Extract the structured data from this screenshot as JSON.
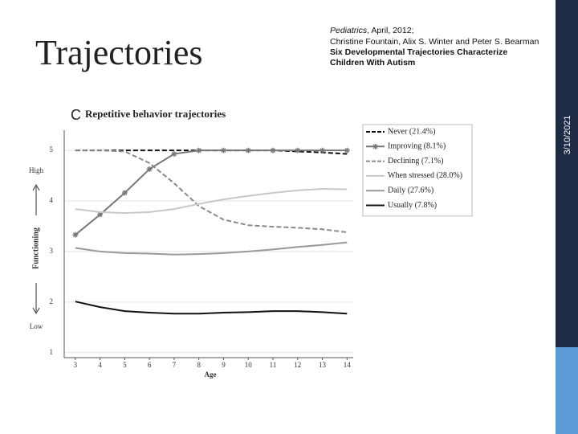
{
  "slide": {
    "title": "Trajectories",
    "date": "3/10/2021",
    "citation": {
      "journal": "Pediatrics",
      "issue": ", April, 2012;",
      "authors": "Christine Fountain, Alix S. Winter and Peter S. Bearman",
      "article_line1": "Six Developmental Trajectories Characterize",
      "article_line2": "Children With Autism"
    }
  },
  "chart_data": {
    "type": "line",
    "panel": "C",
    "title": "Repetitive behavior trajectories",
    "x_label": "Age",
    "y_label": "Functioning",
    "y_high": "High",
    "y_low": "Low",
    "x": [
      3,
      4,
      5,
      6,
      7,
      8,
      9,
      10,
      11,
      12,
      13,
      14
    ],
    "xlim": [
      2.55,
      14.25
    ],
    "xticks": [
      3,
      4,
      5,
      6,
      7,
      8,
      9,
      10,
      11,
      12,
      13,
      14
    ],
    "ylim": [
      0.9,
      5.4
    ],
    "yticks": [
      1,
      2,
      3,
      4,
      5
    ],
    "grid": true,
    "legend": "upper right",
    "series": [
      {
        "name": "Never (21.4%)",
        "color": "#111111",
        "style": "dashed",
        "values": [
          5,
          5,
          5,
          5,
          5,
          5,
          5,
          5,
          5,
          4.98,
          4.96,
          4.93
        ]
      },
      {
        "name": "Improving (8.1%)",
        "color": "#777777",
        "style": "solid",
        "marker": "asterisk",
        "values": [
          3.33,
          3.73,
          4.16,
          4.63,
          4.93,
          5,
          5,
          5,
          5,
          5,
          5,
          5
        ]
      },
      {
        "name": "Declining (7.1%)",
        "color": "#8a8a8a",
        "style": "dashed",
        "values": [
          5,
          5,
          4.98,
          4.75,
          4.35,
          3.9,
          3.63,
          3.52,
          3.49,
          3.47,
          3.44,
          3.38
        ]
      },
      {
        "name": "When stressed (28.0%)",
        "color": "#c8c8c8",
        "style": "solid",
        "values": [
          3.84,
          3.78,
          3.76,
          3.78,
          3.84,
          3.94,
          4.03,
          4.1,
          4.16,
          4.21,
          4.24,
          4.23
        ]
      },
      {
        "name": "Daily (27.6%)",
        "color": "#999999",
        "style": "solid",
        "values": [
          3.07,
          3.0,
          2.97,
          2.96,
          2.94,
          2.95,
          2.97,
          3.0,
          3.04,
          3.09,
          3.13,
          3.18
        ]
      },
      {
        "name": "Usually (7.8%)",
        "color": "#111111",
        "style": "solid",
        "values": [
          2.01,
          1.9,
          1.82,
          1.79,
          1.77,
          1.77,
          1.79,
          1.8,
          1.82,
          1.82,
          1.8,
          1.77
        ]
      }
    ]
  }
}
